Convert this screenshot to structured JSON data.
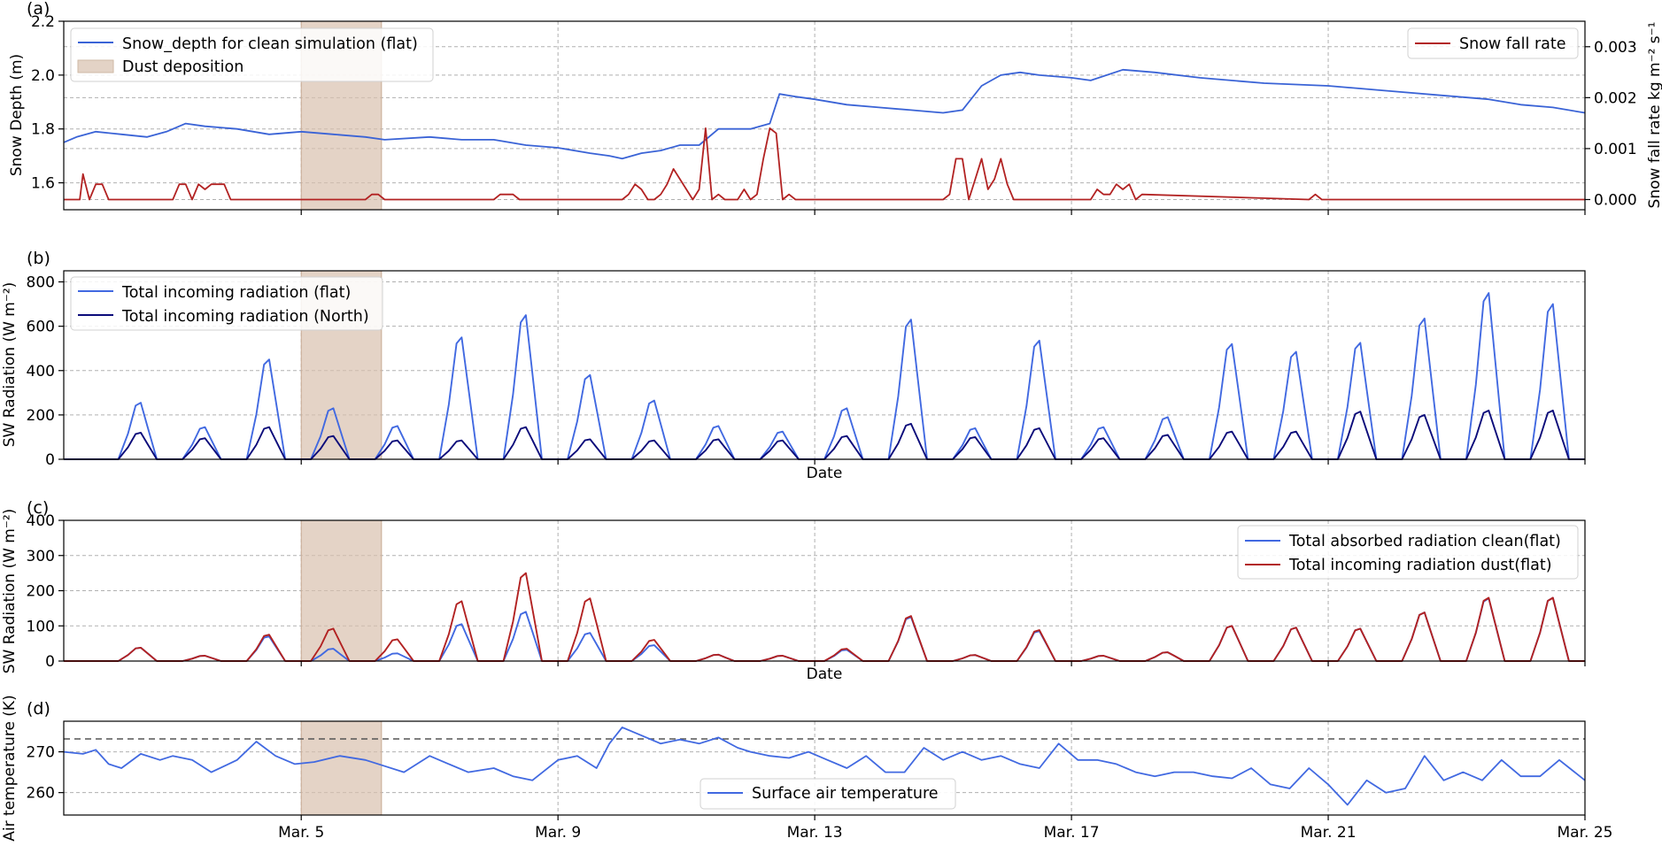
{
  "chart_data": [
    {
      "type": "line",
      "panel_label": "(a)",
      "ylabel": "Snow Depth (m)",
      "ylabel_right": "Snow fall rate kg m⁻² s⁻¹",
      "ylim": [
        1.5,
        2.2
      ],
      "yticks": [
        "1.6",
        "1.8",
        "2.0",
        "2.2"
      ],
      "ylim_right": [
        -0.0002,
        0.0035
      ],
      "yticks_right": [
        "0.000",
        "0.001",
        "0.002",
        "0.003"
      ],
      "dust_deposition_days": [
        5.0,
        6.25
      ],
      "series": [
        {
          "name": "Snow_depth for clean simulation (flat)",
          "axis": "left",
          "color": "#3a63d6",
          "x": [
            1.3,
            1.5,
            1.8,
            2.2,
            2.6,
            2.9,
            3.2,
            3.5,
            4.0,
            4.5,
            5.0,
            5.5,
            6.0,
            6.3,
            7.0,
            7.5,
            8.0,
            8.5,
            9.0,
            9.5,
            9.8,
            10.0,
            10.3,
            10.6,
            10.9,
            11.2,
            11.5,
            12.0,
            12.3,
            12.45,
            12.7,
            13.0,
            13.5,
            14.0,
            14.5,
            15.0,
            15.3,
            15.6,
            15.9,
            16.2,
            16.5,
            17.0,
            17.3,
            17.8,
            18.3,
            19.0,
            20.0,
            21.0,
            22.0,
            23.0,
            23.5,
            24.0,
            24.5,
            25.0
          ],
          "values": [
            1.75,
            1.77,
            1.79,
            1.78,
            1.77,
            1.79,
            1.82,
            1.81,
            1.8,
            1.78,
            1.79,
            1.78,
            1.77,
            1.76,
            1.77,
            1.76,
            1.76,
            1.74,
            1.73,
            1.71,
            1.7,
            1.69,
            1.71,
            1.72,
            1.74,
            1.74,
            1.8,
            1.8,
            1.82,
            1.93,
            1.92,
            1.91,
            1.89,
            1.88,
            1.87,
            1.86,
            1.87,
            1.96,
            2.0,
            2.01,
            2.0,
            1.99,
            1.98,
            2.02,
            2.01,
            1.99,
            1.97,
            1.96,
            1.94,
            1.92,
            1.91,
            1.89,
            1.88,
            1.86
          ]
        },
        {
          "name": "Snow fall rate",
          "axis": "right",
          "color": "#b22222",
          "x": [
            1.3,
            1.55,
            1.6,
            1.7,
            1.8,
            1.9,
            2.0,
            2.1,
            2.5,
            3.0,
            3.1,
            3.2,
            3.3,
            3.4,
            3.5,
            3.6,
            3.7,
            3.8,
            3.9,
            6.0,
            6.1,
            6.2,
            6.3,
            6.4,
            8.0,
            8.1,
            8.2,
            8.3,
            8.4,
            10.0,
            10.1,
            10.2,
            10.3,
            10.4,
            10.5,
            10.6,
            10.7,
            10.8,
            11.1,
            11.2,
            11.3,
            11.4,
            11.5,
            11.6,
            11.7,
            11.8,
            11.9,
            12.0,
            12.1,
            12.2,
            12.3,
            12.4,
            12.5,
            12.6,
            12.7,
            12.8,
            12.9,
            15.0,
            15.1,
            15.2,
            15.3,
            15.4,
            15.5,
            15.6,
            15.7,
            15.8,
            15.9,
            16.0,
            16.1,
            17.3,
            17.4,
            17.5,
            17.6,
            17.7,
            17.8,
            17.9,
            18.0,
            18.1,
            20.7,
            20.8,
            20.9,
            25.0
          ],
          "values": [
            0.0,
            0.0,
            0.0005,
            0.0,
            0.0003,
            0.0003,
            0.0,
            0.0,
            0.0,
            0.0,
            0.0003,
            0.0003,
            0.0,
            0.0003,
            0.0002,
            0.0003,
            0.0003,
            0.0003,
            0.0,
            0.0,
            0.0001,
            0.0001,
            0.0,
            0.0,
            0.0,
            0.0001,
            0.0001,
            0.0001,
            0.0,
            0.0,
            0.0001,
            0.0003,
            0.0002,
            0.0,
            0.0,
            0.0001,
            0.0003,
            0.0006,
            0.0,
            0.0002,
            0.0014,
            0.0,
            0.0001,
            0.0,
            0.0,
            0.0,
            0.0002,
            0.0,
            0.0001,
            0.0008,
            0.0014,
            0.0013,
            0.0,
            0.0001,
            0.0,
            0.0,
            0.0,
            0.0,
            0.0001,
            0.0008,
            0.0008,
            0.0,
            0.0004,
            0.0008,
            0.0002,
            0.0004,
            0.0008,
            0.0003,
            0.0,
            0.0,
            0.0002,
            0.0001,
            0.0001,
            0.0003,
            0.0002,
            0.0003,
            0.0,
            0.0001,
            0.0,
            0.0001,
            0.0,
            0.0
          ]
        }
      ],
      "legend_left": [
        "Snow_depth for clean simulation (flat)",
        "Dust deposition"
      ],
      "legend_right": [
        "Snow fall rate"
      ]
    },
    {
      "type": "line",
      "panel_label": "(b)",
      "ylabel": "SW Radiation (W m⁻²)",
      "xlabel": "Date",
      "ylim": [
        0,
        850
      ],
      "yticks": [
        "0",
        "200",
        "400",
        "600",
        "800"
      ],
      "dust_deposition_days": [
        5.0,
        6.25
      ],
      "peak_days": [
        2.5,
        3.5,
        4.5,
        5.5,
        6.5,
        7.5,
        8.5,
        9.5,
        10.5,
        11.5,
        12.5,
        13.5,
        14.5,
        15.5,
        16.5,
        17.5,
        18.5,
        19.5,
        20.5,
        21.5,
        22.5,
        23.5,
        24.5
      ],
      "series": [
        {
          "name": "Total incoming radiation (flat)",
          "color": "#4169e1",
          "peaks": [
            255,
            145,
            450,
            230,
            150,
            550,
            650,
            380,
            265,
            150,
            125,
            230,
            630,
            140,
            535,
            145,
            190,
            520,
            485,
            525,
            635,
            750,
            700
          ]
        },
        {
          "name": "Total incoming radiation (North)",
          "color": "#0b0b7a",
          "peaks": [
            120,
            95,
            145,
            105,
            85,
            85,
            145,
            90,
            85,
            90,
            85,
            105,
            160,
            100,
            140,
            95,
            110,
            125,
            125,
            215,
            200,
            220,
            220
          ]
        }
      ]
    },
    {
      "type": "line",
      "panel_label": "(c)",
      "ylabel": "SW Radiation (W m⁻²)",
      "xlabel": "Date",
      "ylim": [
        0,
        400
      ],
      "yticks": [
        "0",
        "100",
        "200",
        "300",
        "400"
      ],
      "dust_deposition_days": [
        5.0,
        6.25
      ],
      "peak_days": [
        2.5,
        3.5,
        4.5,
        5.5,
        6.5,
        7.5,
        8.5,
        9.5,
        10.5,
        11.5,
        12.5,
        13.5,
        14.5,
        15.5,
        16.5,
        17.5,
        18.5,
        19.5,
        20.5,
        21.5,
        22.5,
        23.5,
        24.5
      ],
      "series": [
        {
          "name": "Total absorbed radiation clean(flat)",
          "color": "#4169e1",
          "peaks": [
            38,
            15,
            70,
            35,
            22,
            105,
            140,
            80,
            45,
            18,
            15,
            32,
            125,
            17,
            85,
            15,
            25,
            100,
            95,
            92,
            138,
            178,
            180
          ]
        },
        {
          "name": "Total incoming radiation dust(flat)",
          "color": "#b22222",
          "peaks": [
            38,
            15,
            75,
            92,
            62,
            170,
            250,
            178,
            60,
            18,
            15,
            35,
            128,
            17,
            88,
            15,
            25,
            100,
            95,
            92,
            138,
            180,
            180
          ]
        }
      ]
    },
    {
      "type": "line",
      "panel_label": "(d)",
      "ylabel": "Air temperature (K)",
      "ylim": [
        254.5,
        277.5
      ],
      "yticks": [
        "260",
        "270"
      ],
      "reference_line": 273.15,
      "dust_deposition_days": [
        5.0,
        6.25
      ],
      "x_range": [
        1.3,
        25.0
      ],
      "xticks": [
        "Mar. 5",
        "Mar. 9",
        "Mar. 13",
        "Mar. 17",
        "Mar. 21",
        "Mar. 25"
      ],
      "xtick_days": [
        5,
        9,
        13,
        17,
        21,
        25
      ],
      "series": [
        {
          "name": "Surface air temperature",
          "color": "#4169e1",
          "x": [
            1.3,
            1.6,
            1.8,
            2.0,
            2.2,
            2.5,
            2.8,
            3.0,
            3.3,
            3.6,
            4.0,
            4.3,
            4.6,
            4.9,
            5.2,
            5.6,
            6.0,
            6.3,
            6.6,
            7.0,
            7.3,
            7.6,
            8.0,
            8.3,
            8.6,
            9.0,
            9.3,
            9.6,
            9.8,
            10.0,
            10.3,
            10.6,
            10.9,
            11.2,
            11.5,
            11.8,
            12.0,
            12.3,
            12.6,
            12.9,
            13.2,
            13.5,
            13.8,
            14.1,
            14.4,
            14.7,
            15.0,
            15.3,
            15.6,
            15.9,
            16.2,
            16.5,
            16.8,
            17.1,
            17.4,
            17.7,
            18.0,
            18.3,
            18.6,
            18.9,
            19.2,
            19.5,
            19.8,
            20.1,
            20.4,
            20.7,
            21.0,
            21.3,
            21.6,
            21.9,
            22.2,
            22.5,
            22.8,
            23.1,
            23.4,
            23.7,
            24.0,
            24.3,
            24.6,
            25.0
          ],
          "values": [
            270,
            269.5,
            270.5,
            267,
            266,
            269.5,
            268,
            269,
            268,
            265,
            268,
            272.5,
            269,
            267,
            267.5,
            269,
            268,
            266.5,
            265,
            269,
            267,
            265,
            266,
            264,
            263,
            268,
            269,
            266,
            272,
            276,
            274,
            272,
            273,
            272,
            273.5,
            271,
            270,
            269,
            268.5,
            270,
            268,
            266,
            269,
            265,
            265,
            271,
            268,
            270,
            268,
            269,
            267,
            266,
            272,
            268,
            268,
            267,
            265,
            264,
            265,
            265,
            264,
            263.5,
            266,
            262,
            261,
            266,
            262,
            257,
            263,
            260,
            261,
            269,
            263,
            265,
            263,
            268,
            264,
            264,
            268,
            263
          ]
        }
      ],
      "legend": [
        "Surface air temperature"
      ]
    }
  ]
}
